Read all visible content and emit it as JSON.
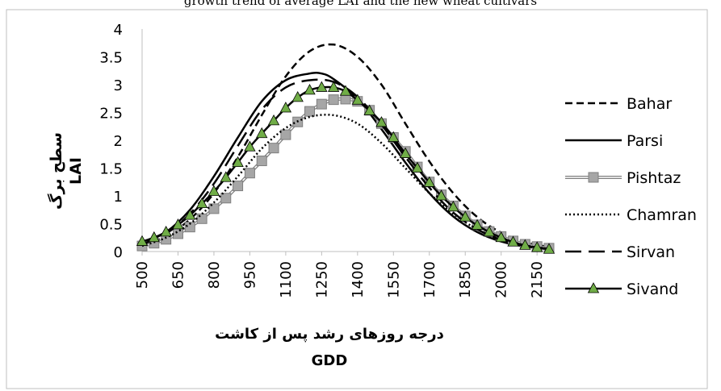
{
  "caption_partial": "growth trend of average LAI and the new wheat cultivars",
  "chart_data": {
    "type": "line",
    "xlabel_fa": "درجه روزهای رشد پس از کاشت",
    "xlabel_en": "GDD",
    "ylabel_fa": "سطح برگ",
    "ylabel_en": "LAI",
    "xlim": [
      500,
      2200
    ],
    "ylim": [
      0,
      4
    ],
    "x_ticks": [
      500,
      650,
      800,
      950,
      1100,
      1250,
      1400,
      1550,
      1700,
      1850,
      2000,
      2150
    ],
    "y_ticks": [
      "0",
      "0.5",
      "1",
      "1.5",
      "2",
      "2.5",
      "3",
      "3.5",
      "4"
    ],
    "legend_position": "right",
    "series": [
      {
        "name": "Bahar",
        "style": "dashed",
        "color": "#000000",
        "marker": "none",
        "x": [
          500,
          600,
          700,
          800,
          900,
          1000,
          1100,
          1200,
          1300,
          1400,
          1500,
          1600,
          1700,
          1800,
          1900,
          2000,
          2100,
          2200
        ],
        "y": [
          0.12,
          0.28,
          0.58,
          1.05,
          1.7,
          2.45,
          3.15,
          3.6,
          3.72,
          3.5,
          3.0,
          2.3,
          1.62,
          1.05,
          0.62,
          0.34,
          0.17,
          0.08
        ]
      },
      {
        "name": "Parsi",
        "style": "solid",
        "color": "#000000",
        "marker": "none",
        "x": [
          500,
          600,
          700,
          800,
          900,
          1000,
          1100,
          1200,
          1250,
          1300,
          1400,
          1500,
          1600,
          1700,
          1800,
          1900,
          2000,
          2100,
          2200
        ],
        "y": [
          0.15,
          0.35,
          0.75,
          1.35,
          2.05,
          2.7,
          3.08,
          3.2,
          3.2,
          3.1,
          2.75,
          2.2,
          1.6,
          1.05,
          0.63,
          0.35,
          0.18,
          0.09,
          0.04
        ]
      },
      {
        "name": "Pishtaz",
        "style": "double",
        "color": "#7f7f7f",
        "marker": "square",
        "x": [
          500,
          550,
          600,
          650,
          700,
          750,
          800,
          850,
          900,
          950,
          1000,
          1050,
          1100,
          1150,
          1200,
          1250,
          1300,
          1350,
          1400,
          1450,
          1500,
          1550,
          1600,
          1650,
          1700,
          1750,
          1800,
          1850,
          1900,
          1950,
          2000,
          2050,
          2100,
          2150,
          2200
        ],
        "y": [
          0.1,
          0.15,
          0.22,
          0.32,
          0.44,
          0.59,
          0.77,
          0.96,
          1.18,
          1.41,
          1.63,
          1.86,
          2.1,
          2.33,
          2.52,
          2.65,
          2.73,
          2.74,
          2.7,
          2.54,
          2.3,
          2.05,
          1.8,
          1.52,
          1.25,
          1.02,
          0.82,
          0.64,
          0.48,
          0.36,
          0.27,
          0.19,
          0.13,
          0.09,
          0.06
        ]
      },
      {
        "name": "Chamran",
        "style": "dotted",
        "color": "#000000",
        "marker": "none",
        "x": [
          500,
          600,
          700,
          800,
          900,
          1000,
          1100,
          1200,
          1300,
          1400,
          1500,
          1600,
          1700,
          1800,
          1900,
          2000,
          2100,
          2200
        ],
        "y": [
          0.1,
          0.25,
          0.5,
          0.88,
          1.35,
          1.85,
          2.22,
          2.42,
          2.45,
          2.3,
          1.95,
          1.5,
          1.05,
          0.68,
          0.4,
          0.22,
          0.11,
          0.05
        ]
      },
      {
        "name": "Sirvan",
        "style": "longdash",
        "color": "#000000",
        "marker": "none",
        "x": [
          500,
          600,
          700,
          800,
          900,
          1000,
          1100,
          1200,
          1300,
          1400,
          1500,
          1600,
          1700,
          1800,
          1900,
          2000,
          2100,
          2200
        ],
        "y": [
          0.13,
          0.32,
          0.68,
          1.22,
          1.9,
          2.55,
          2.95,
          3.08,
          3.05,
          2.78,
          2.28,
          1.7,
          1.15,
          0.7,
          0.4,
          0.21,
          0.1,
          0.05
        ]
      },
      {
        "name": "Sivand",
        "style": "solid",
        "color": "#000000",
        "marker": "triangle",
        "x": [
          500,
          550,
          600,
          650,
          700,
          750,
          800,
          850,
          900,
          950,
          1000,
          1050,
          1100,
          1150,
          1200,
          1250,
          1300,
          1350,
          1400,
          1450,
          1500,
          1550,
          1600,
          1650,
          1700,
          1750,
          1800,
          1850,
          1900,
          1950,
          2000,
          2050,
          2100,
          2150,
          2200
        ],
        "y": [
          0.18,
          0.25,
          0.35,
          0.48,
          0.65,
          0.86,
          1.08,
          1.33,
          1.6,
          1.88,
          2.12,
          2.35,
          2.58,
          2.77,
          2.9,
          2.95,
          2.95,
          2.88,
          2.72,
          2.53,
          2.32,
          2.05,
          1.76,
          1.5,
          1.24,
          1.0,
          0.8,
          0.62,
          0.47,
          0.35,
          0.25,
          0.17,
          0.11,
          0.07,
          0.04
        ]
      }
    ]
  }
}
